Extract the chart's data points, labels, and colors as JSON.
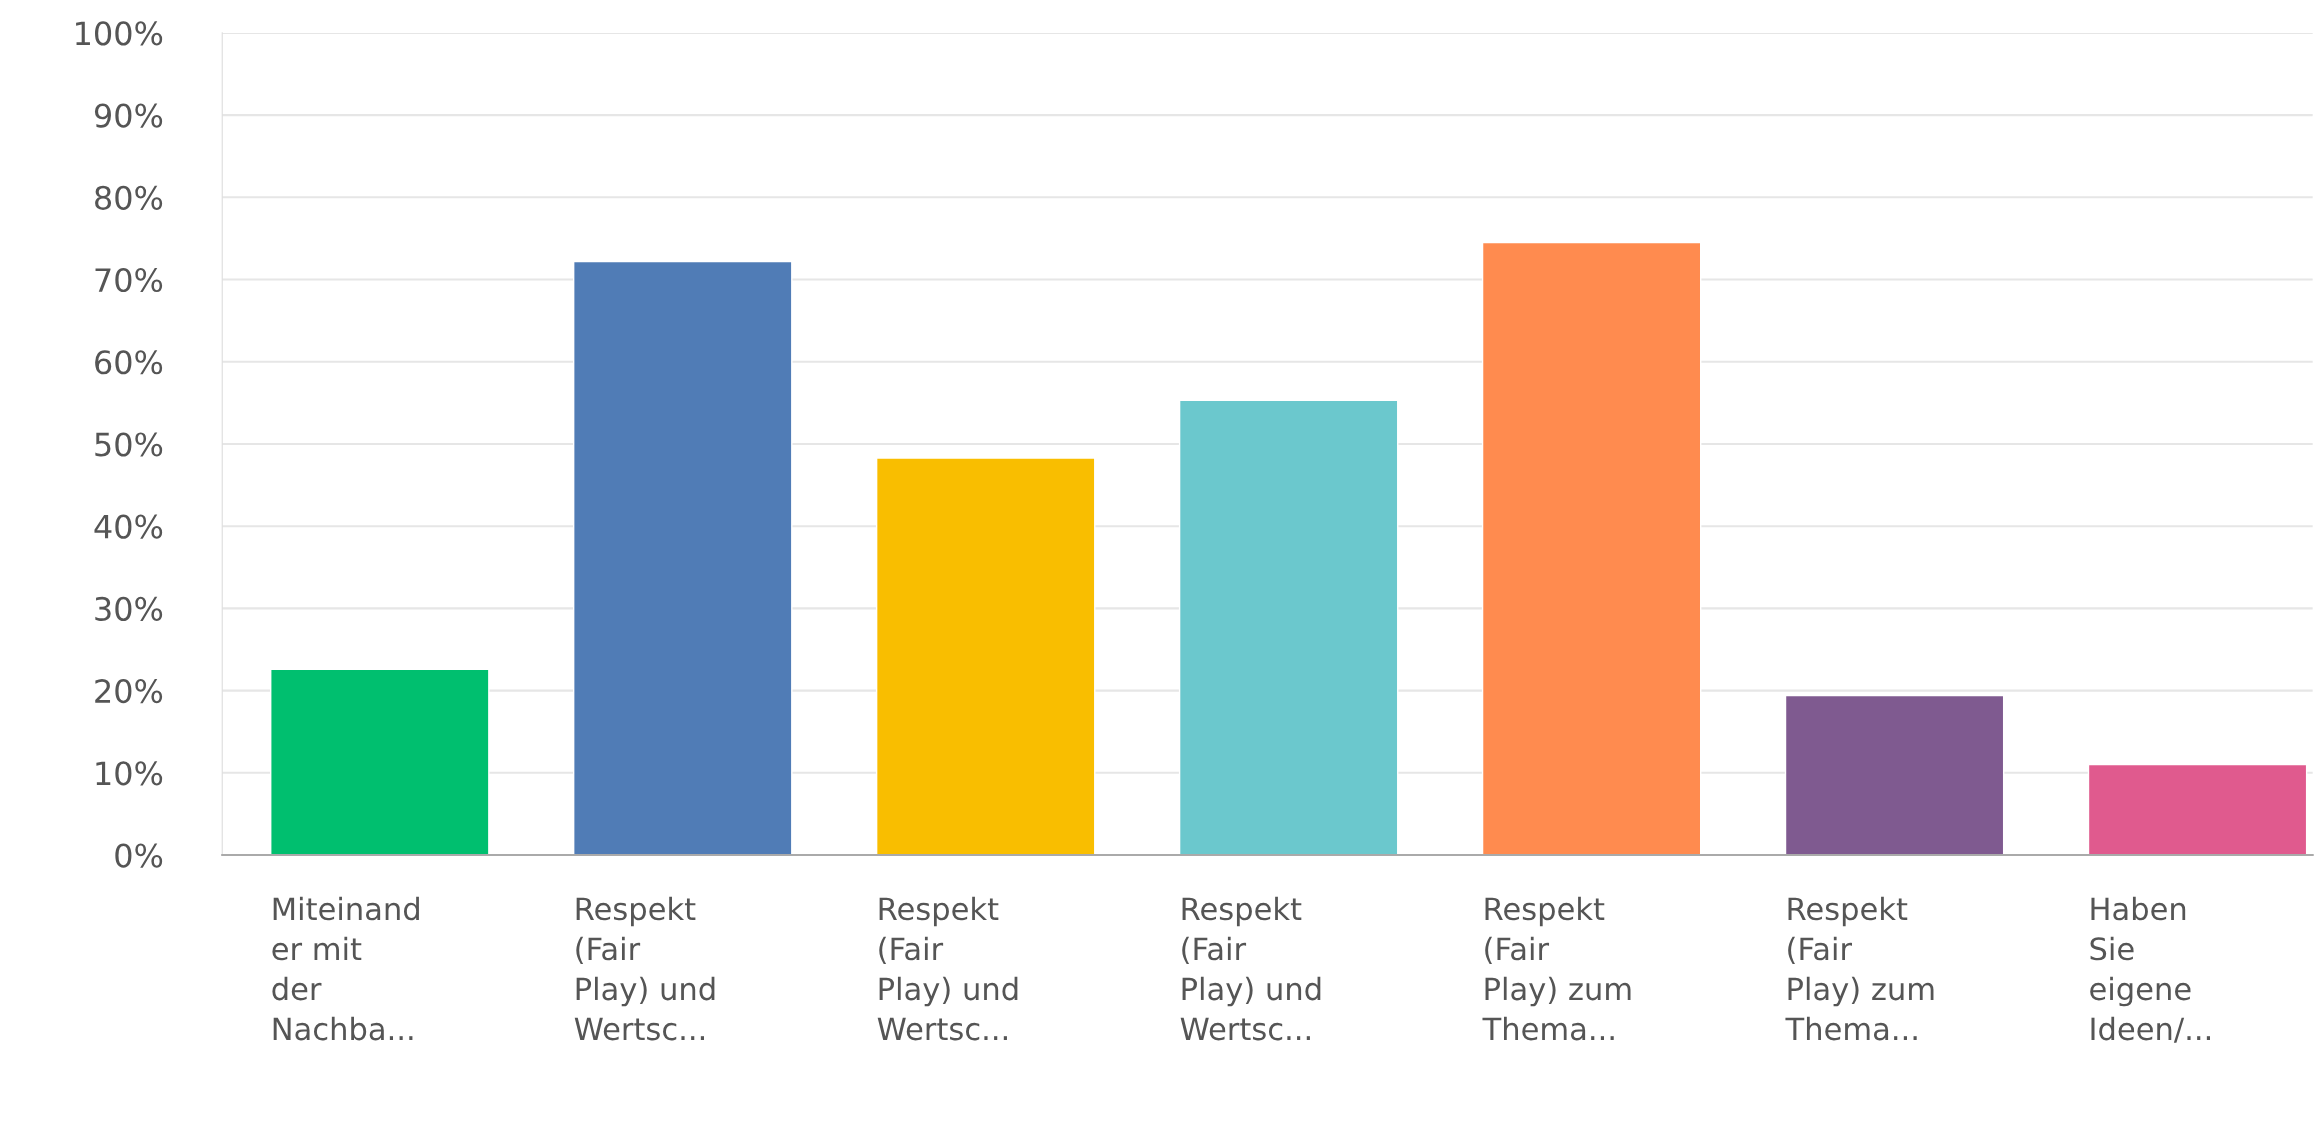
{
  "chart_data": {
    "type": "bar",
    "categories": [
      "Miteinand\ner mit\nder\nNachba...",
      "Respekt\n(Fair\nPlay) und\nWertsc...",
      "Respekt\n(Fair\nPlay) und\nWertsc...",
      "Respekt\n(Fair\nPlay) und\nWertsc...",
      "Respekt\n(Fair\nPlay) zum\nThema...",
      "Respekt\n(Fair\nPlay) zum\nThema...",
      "Haben\nSie\neigene\nIdeen/..."
    ],
    "values": [
      22.6,
      72.2,
      48.3,
      55.3,
      74.5,
      19.4,
      11.0
    ],
    "colors": [
      "#00bf6f",
      "#507cb6",
      "#f9be00",
      "#6bc8cd",
      "#ff8b4f",
      "#7f5a90",
      "#e05a8e"
    ],
    "ylim": [
      0,
      100
    ],
    "yticks": [
      {
        "value": 0,
        "label": "0%"
      },
      {
        "value": 10,
        "label": "10%"
      },
      {
        "value": 20,
        "label": "20%"
      },
      {
        "value": 30,
        "label": "30%"
      },
      {
        "value": 40,
        "label": "40%"
      },
      {
        "value": 50,
        "label": "50%"
      },
      {
        "value": 60,
        "label": "60%"
      },
      {
        "value": 70,
        "label": "70%"
      },
      {
        "value": 80,
        "label": "80%"
      },
      {
        "value": 90,
        "label": "90%"
      },
      {
        "value": 100,
        "label": "100%"
      }
    ],
    "grid": "y"
  }
}
